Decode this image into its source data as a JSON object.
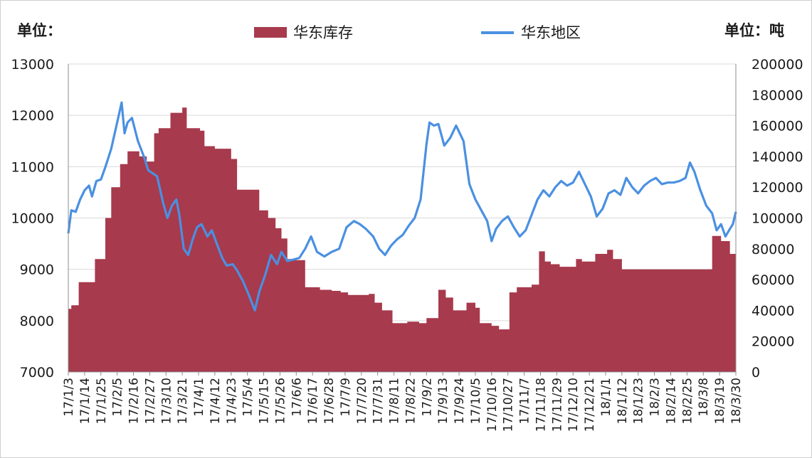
{
  "chart_data": {
    "type": "bar+line",
    "left_unit_label": "单位：",
    "right_unit_label": "单位：吨",
    "legend": {
      "placement": "top-center",
      "entries": [
        {
          "name": "华东库存",
          "kind": "area",
          "color": "#a73a4d"
        },
        {
          "name": "华东地区",
          "kind": "line",
          "color": "#4a90e2"
        }
      ]
    },
    "left_axis": {
      "min": 7000,
      "max": 13000,
      "step": 1000,
      "ticks": [
        "7000",
        "8000",
        "9000",
        "10000",
        "11000",
        "12000",
        "13000"
      ]
    },
    "right_axis": {
      "min": 0,
      "max": 200000,
      "step": 20000,
      "ticks": [
        "0",
        "20000",
        "40000",
        "60000",
        "80000",
        "100000",
        "120000",
        "140000",
        "160000",
        "180000",
        "200000"
      ]
    },
    "x_axis": {
      "min": "2017-01-03",
      "max": "2018-03-30",
      "ticks": [
        {
          "date": "2017-01-03",
          "label": "17/1/3"
        },
        {
          "date": "2017-01-14",
          "label": "17/1/14"
        },
        {
          "date": "2017-01-25",
          "label": "17/1/25"
        },
        {
          "date": "2017-02-05",
          "label": "17/2/5"
        },
        {
          "date": "2017-02-16",
          "label": "17/2/16"
        },
        {
          "date": "2017-02-27",
          "label": "17/2/27"
        },
        {
          "date": "2017-03-10",
          "label": "17/3/10"
        },
        {
          "date": "2017-03-21",
          "label": "17/3/21"
        },
        {
          "date": "2017-04-01",
          "label": "17/4/1"
        },
        {
          "date": "2017-04-12",
          "label": "17/4/12"
        },
        {
          "date": "2017-04-23",
          "label": "17/4/23"
        },
        {
          "date": "2017-05-04",
          "label": "17/5/4"
        },
        {
          "date": "2017-05-15",
          "label": "17/5/15"
        },
        {
          "date": "2017-05-26",
          "label": "17/5/26"
        },
        {
          "date": "2017-06-06",
          "label": "17/6/6"
        },
        {
          "date": "2017-06-17",
          "label": "17/6/17"
        },
        {
          "date": "2017-06-28",
          "label": "17/6/28"
        },
        {
          "date": "2017-07-09",
          "label": "17/7/9"
        },
        {
          "date": "2017-07-20",
          "label": "17/7/20"
        },
        {
          "date": "2017-07-31",
          "label": "17/7/31"
        },
        {
          "date": "2017-08-11",
          "label": "17/8/11"
        },
        {
          "date": "2017-08-22",
          "label": "17/8/22"
        },
        {
          "date": "2017-09-02",
          "label": "17/9/2"
        },
        {
          "date": "2017-09-13",
          "label": "17/9/13"
        },
        {
          "date": "2017-09-24",
          "label": "17/9/24"
        },
        {
          "date": "2017-10-05",
          "label": "17/10/5"
        },
        {
          "date": "2017-10-16",
          "label": "17/10/16"
        },
        {
          "date": "2017-10-27",
          "label": "17/10/27"
        },
        {
          "date": "2017-11-07",
          "label": "17/11/7"
        },
        {
          "date": "2017-11-18",
          "label": "17/11/18"
        },
        {
          "date": "2017-11-29",
          "label": "17/11/29"
        },
        {
          "date": "2017-12-10",
          "label": "17/12/10"
        },
        {
          "date": "2017-12-21",
          "label": "17/12/21"
        },
        {
          "date": "2018-01-01",
          "label": "18/1/1"
        },
        {
          "date": "2018-01-12",
          "label": "18/1/12"
        },
        {
          "date": "2018-01-23",
          "label": "18/1/23"
        },
        {
          "date": "2018-02-03",
          "label": "18/2/3"
        },
        {
          "date": "2018-02-14",
          "label": "18/2/14"
        },
        {
          "date": "2018-02-25",
          "label": "18/2/25"
        },
        {
          "date": "2018-03-08",
          "label": "18/3/8"
        },
        {
          "date": "2018-03-19",
          "label": "18/3/19"
        },
        {
          "date": "2018-03-30",
          "label": "18/3/30"
        }
      ]
    },
    "series": [
      {
        "name": "华东库存",
        "type": "area",
        "axis": "left",
        "color": "#a73a4d",
        "points": [
          [
            "2017-01-03",
            8230
          ],
          [
            "2017-01-05",
            8300
          ],
          [
            "2017-01-10",
            8750
          ],
          [
            "2017-01-18",
            8750
          ],
          [
            "2017-01-21",
            9200
          ],
          [
            "2017-01-28",
            10000
          ],
          [
            "2017-02-01",
            10600
          ],
          [
            "2017-02-07",
            11050
          ],
          [
            "2017-02-12",
            11300
          ],
          [
            "2017-02-20",
            11200
          ],
          [
            "2017-02-25",
            11100
          ],
          [
            "2017-03-02",
            11650
          ],
          [
            "2017-03-05",
            11750
          ],
          [
            "2017-03-13",
            12050
          ],
          [
            "2017-03-21",
            12150
          ],
          [
            "2017-03-24",
            11750
          ],
          [
            "2017-04-02",
            11700
          ],
          [
            "2017-04-05",
            11400
          ],
          [
            "2017-04-12",
            11350
          ],
          [
            "2017-04-23",
            11150
          ],
          [
            "2017-04-27",
            10550
          ],
          [
            "2017-05-08",
            10550
          ],
          [
            "2017-05-12",
            10150
          ],
          [
            "2017-05-18",
            10000
          ],
          [
            "2017-05-23",
            9800
          ],
          [
            "2017-05-27",
            9600
          ],
          [
            "2017-05-31",
            9200
          ],
          [
            "2017-06-06",
            9180
          ],
          [
            "2017-06-12",
            8650
          ],
          [
            "2017-06-22",
            8600
          ],
          [
            "2017-06-30",
            8580
          ],
          [
            "2017-07-06",
            8550
          ],
          [
            "2017-07-11",
            8500
          ],
          [
            "2017-07-25",
            8520
          ],
          [
            "2017-07-29",
            8350
          ],
          [
            "2017-08-03",
            8200
          ],
          [
            "2017-08-10",
            7950
          ],
          [
            "2017-08-20",
            7980
          ],
          [
            "2017-08-28",
            7950
          ],
          [
            "2017-09-02",
            8050
          ],
          [
            "2017-09-10",
            8600
          ],
          [
            "2017-09-15",
            8450
          ],
          [
            "2017-09-20",
            8200
          ],
          [
            "2017-09-29",
            8350
          ],
          [
            "2017-10-05",
            8250
          ],
          [
            "2017-10-08",
            7950
          ],
          [
            "2017-10-16",
            7900
          ],
          [
            "2017-10-21",
            7830
          ],
          [
            "2017-10-28",
            8550
          ],
          [
            "2017-11-02",
            8650
          ],
          [
            "2017-11-12",
            8700
          ],
          [
            "2017-11-17",
            9350
          ],
          [
            "2017-11-21",
            9150
          ],
          [
            "2017-11-25",
            9100
          ],
          [
            "2017-12-01",
            9050
          ],
          [
            "2017-12-12",
            9200
          ],
          [
            "2017-12-16",
            9150
          ],
          [
            "2017-12-25",
            9300
          ],
          [
            "2018-01-02",
            9380
          ],
          [
            "2018-01-06",
            9200
          ],
          [
            "2018-01-12",
            9000
          ],
          [
            "2018-01-19",
            9000
          ],
          [
            "2018-01-26",
            9000
          ],
          [
            "2018-02-05",
            9000
          ],
          [
            "2018-02-17",
            9000
          ],
          [
            "2018-02-27",
            9000
          ],
          [
            "2018-03-10",
            9000
          ],
          [
            "2018-03-14",
            9650
          ],
          [
            "2018-03-20",
            9550
          ],
          [
            "2018-03-26",
            9300
          ],
          [
            "2018-03-30",
            9300
          ]
        ]
      },
      {
        "name": "华东地区",
        "type": "line",
        "axis": "right",
        "color": "#4a90e2",
        "points": [
          [
            "2017-01-03",
            90000
          ],
          [
            "2017-01-05",
            105000
          ],
          [
            "2017-01-08",
            104000
          ],
          [
            "2017-01-11",
            112000
          ],
          [
            "2017-01-14",
            118000
          ],
          [
            "2017-01-17",
            121000
          ],
          [
            "2017-01-19",
            114000
          ],
          [
            "2017-01-22",
            124000
          ],
          [
            "2017-01-25",
            125000
          ],
          [
            "2017-01-28",
            133000
          ],
          [
            "2017-02-01",
            145000
          ],
          [
            "2017-02-05",
            162000
          ],
          [
            "2017-02-08",
            175000
          ],
          [
            "2017-02-10",
            155000
          ],
          [
            "2017-02-12",
            162000
          ],
          [
            "2017-02-15",
            165000
          ],
          [
            "2017-02-19",
            150000
          ],
          [
            "2017-02-23",
            140000
          ],
          [
            "2017-02-26",
            131000
          ],
          [
            "2017-03-01",
            129000
          ],
          [
            "2017-03-04",
            127000
          ],
          [
            "2017-03-08",
            110000
          ],
          [
            "2017-03-11",
            100000
          ],
          [
            "2017-03-14",
            108000
          ],
          [
            "2017-03-17",
            112000
          ],
          [
            "2017-03-19",
            102000
          ],
          [
            "2017-03-22",
            80000
          ],
          [
            "2017-03-25",
            76000
          ],
          [
            "2017-03-28",
            86000
          ],
          [
            "2017-03-31",
            94000
          ],
          [
            "2017-04-03",
            96000
          ],
          [
            "2017-04-07",
            88000
          ],
          [
            "2017-04-10",
            92000
          ],
          [
            "2017-04-13",
            84000
          ],
          [
            "2017-04-17",
            74000
          ],
          [
            "2017-04-20",
            69000
          ],
          [
            "2017-04-24",
            70000
          ],
          [
            "2017-04-27",
            66000
          ],
          [
            "2017-05-01",
            59000
          ],
          [
            "2017-05-05",
            50000
          ],
          [
            "2017-05-09",
            40000
          ],
          [
            "2017-05-12",
            52000
          ],
          [
            "2017-05-16",
            63000
          ],
          [
            "2017-05-20",
            76000
          ],
          [
            "2017-05-24",
            70000
          ],
          [
            "2017-05-27",
            78000
          ],
          [
            "2017-05-31",
            72000
          ],
          [
            "2017-06-04",
            73000
          ],
          [
            "2017-06-08",
            74000
          ],
          [
            "2017-06-12",
            80000
          ],
          [
            "2017-06-16",
            88000
          ],
          [
            "2017-06-20",
            78000
          ],
          [
            "2017-06-25",
            75000
          ],
          [
            "2017-06-30",
            78000
          ],
          [
            "2017-07-05",
            80000
          ],
          [
            "2017-07-10",
            94000
          ],
          [
            "2017-07-15",
            98000
          ],
          [
            "2017-07-19",
            96000
          ],
          [
            "2017-07-23",
            93000
          ],
          [
            "2017-07-28",
            88000
          ],
          [
            "2017-08-01",
            80000
          ],
          [
            "2017-08-05",
            76000
          ],
          [
            "2017-08-09",
            82000
          ],
          [
            "2017-08-13",
            86000
          ],
          [
            "2017-08-17",
            89000
          ],
          [
            "2017-08-21",
            95000
          ],
          [
            "2017-08-25",
            100000
          ],
          [
            "2017-08-29",
            112000
          ],
          [
            "2017-09-02",
            148000
          ],
          [
            "2017-09-04",
            162000
          ],
          [
            "2017-09-07",
            160000
          ],
          [
            "2017-09-10",
            161000
          ],
          [
            "2017-09-14",
            147000
          ],
          [
            "2017-09-18",
            152000
          ],
          [
            "2017-09-22",
            160000
          ],
          [
            "2017-09-27",
            150000
          ],
          [
            "2017-10-01",
            122000
          ],
          [
            "2017-10-05",
            112000
          ],
          [
            "2017-10-09",
            105000
          ],
          [
            "2017-10-13",
            98000
          ],
          [
            "2017-10-16",
            85000
          ],
          [
            "2017-10-19",
            93000
          ],
          [
            "2017-10-23",
            98000
          ],
          [
            "2017-10-27",
            101000
          ],
          [
            "2017-10-31",
            94000
          ],
          [
            "2017-11-04",
            88000
          ],
          [
            "2017-11-08",
            92000
          ],
          [
            "2017-11-12",
            102000
          ],
          [
            "2017-11-16",
            112000
          ],
          [
            "2017-11-20",
            118000
          ],
          [
            "2017-11-24",
            114000
          ],
          [
            "2017-11-28",
            120000
          ],
          [
            "2017-12-02",
            124000
          ],
          [
            "2017-12-06",
            121000
          ],
          [
            "2017-12-10",
            123000
          ],
          [
            "2017-12-14",
            130000
          ],
          [
            "2017-12-18",
            122000
          ],
          [
            "2017-12-22",
            114000
          ],
          [
            "2017-12-26",
            101000
          ],
          [
            "2017-12-30",
            106000
          ],
          [
            "2018-01-03",
            116000
          ],
          [
            "2018-01-07",
            118000
          ],
          [
            "2018-01-11",
            115000
          ],
          [
            "2018-01-15",
            126000
          ],
          [
            "2018-01-19",
            120000
          ],
          [
            "2018-01-23",
            116000
          ],
          [
            "2018-01-27",
            121000
          ],
          [
            "2018-01-31",
            124000
          ],
          [
            "2018-02-04",
            126000
          ],
          [
            "2018-02-08",
            122000
          ],
          [
            "2018-02-12",
            123000
          ],
          [
            "2018-02-16",
            123000
          ],
          [
            "2018-02-20",
            124000
          ],
          [
            "2018-02-24",
            126000
          ],
          [
            "2018-02-27",
            136000
          ],
          [
            "2018-03-02",
            130000
          ],
          [
            "2018-03-06",
            118000
          ],
          [
            "2018-03-10",
            108000
          ],
          [
            "2018-03-14",
            103000
          ],
          [
            "2018-03-17",
            92000
          ],
          [
            "2018-03-20",
            96000
          ],
          [
            "2018-03-23",
            88000
          ],
          [
            "2018-03-26",
            93000
          ],
          [
            "2018-03-28",
            96000
          ],
          [
            "2018-03-30",
            104000
          ]
        ]
      }
    ]
  }
}
